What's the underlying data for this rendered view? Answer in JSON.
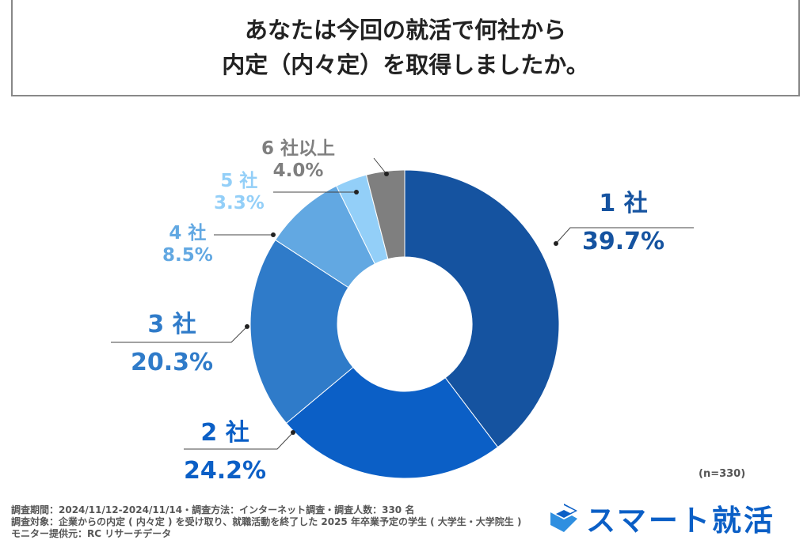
{
  "title_lines": [
    "あなたは今回の就活で何社から",
    "内定（内々定）を取得しましたか。"
  ],
  "chart_data": {
    "type": "pie",
    "donut": true,
    "title": "あなたは今回の就活で何社から内定（内々定）を取得しましたか。",
    "categories": [
      "1 社",
      "2 社",
      "3 社",
      "4 社",
      "5 社",
      "6 社以上"
    ],
    "values": [
      39.7,
      24.2,
      20.3,
      8.5,
      3.3,
      4.0
    ],
    "value_labels": [
      "39.7%",
      "24.2%",
      "20.3%",
      "8.5%",
      "3.3%",
      "4.0%"
    ],
    "colors": [
      "#1553a0",
      "#0b5fc6",
      "#2f7bc9",
      "#62a8e2",
      "#93cff8",
      "#7f7f7f"
    ],
    "sample": "(n=330)"
  },
  "footer": [
    "調査期間：2024/11/12-2024/11/14・調査方法：インターネット調査・調査人数：330 名",
    "調査対象：企業からの内定 ( 内々定 ) を受け取り、就職活動を終了した 2025 年卒業予定の学生 ( 大学生・大学院生 )",
    "モニター提供元：RC リサーチデータ"
  ],
  "logo_text": "スマート就活"
}
